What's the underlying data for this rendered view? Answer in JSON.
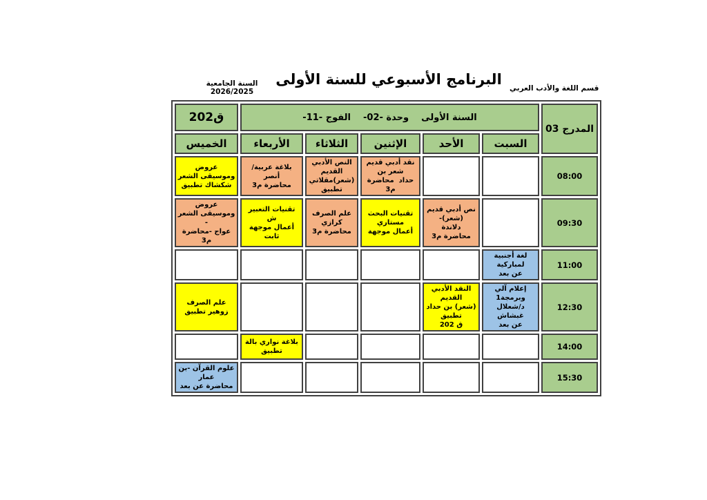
{
  "page": {
    "department": "قسم اللغة والأدب العربي",
    "title": "البرنامج الأسبوعي للسنة الأولى",
    "academic_year_label": "السنة الجامعية 2026/2025"
  },
  "table": {
    "hall": "المدرج 03",
    "group_header": "السنة الأولى    وحدة -02-    الفوج -11-",
    "room": "ق202",
    "days": [
      "السبت",
      "الأحد",
      "الإثنين",
      "الثلاثاء",
      "الأربعاء",
      "الخميس"
    ],
    "rows": [
      {
        "time": "08:00",
        "cells": [
          {
            "text": "",
            "color": "white"
          },
          {
            "text": "",
            "color": "white"
          },
          {
            "text": "نقد أدبي قديم شعر بن\nحداد  محاضرة م3",
            "color": "orange"
          },
          {
            "text": "النص الأدبي القديم\n(شعر)مقلاتي تطبيق",
            "color": "orange"
          },
          {
            "text": "بلاغة عربية/ أنصر\nمحاضرة م3",
            "color": "orange"
          },
          {
            "text": "عروض وموسيقى الشعر\nشكشاك تطبيق",
            "color": "yellow"
          }
        ]
      },
      {
        "time": "09:30",
        "cells": [
          {
            "text": "",
            "color": "white"
          },
          {
            "text": "نص أدبي قديم (شعر)-\nدلاندة\nمحاضرة م3",
            "color": "orange"
          },
          {
            "text": "تقنيات البحث مستاري\nأعمال موجهة",
            "color": "yellow"
          },
          {
            "text": "علم الصرف   كرازي\nمحاضرة م3",
            "color": "orange"
          },
          {
            "text": "تقنيات التعبير ش\nأعمال موجهة ثابت",
            "color": "yellow"
          },
          {
            "text": "عروض وموسيقى الشعر -\nعواج -محاضرة م3",
            "color": "orange"
          }
        ]
      },
      {
        "time": "11:00",
        "cells": [
          {
            "text": "لغة أجنبية لمباركية\nعن بعد",
            "color": "blue"
          },
          {
            "text": "",
            "color": "white"
          },
          {
            "text": "",
            "color": "white"
          },
          {
            "text": "",
            "color": "white"
          },
          {
            "text": "",
            "color": "white"
          },
          {
            "text": "",
            "color": "white"
          }
        ]
      },
      {
        "time": "12:30",
        "cells": [
          {
            "text": "إعلام آلي وبرمجة1\nد/شعلال غبشاش\nعن بعد",
            "color": "blue"
          },
          {
            "text": "النقد الأدبي القديم\n(شعر) بن حداد  تطبيق\nق 202",
            "color": "yellow"
          },
          {
            "text": "",
            "color": "white"
          },
          {
            "text": "",
            "color": "white"
          },
          {
            "text": "",
            "color": "white"
          },
          {
            "text": "علم الصرف زوهير تطبيق",
            "color": "yellow"
          }
        ]
      },
      {
        "time": "14:00",
        "cells": [
          {
            "text": "",
            "color": "white"
          },
          {
            "text": "",
            "color": "white"
          },
          {
            "text": "",
            "color": "white"
          },
          {
            "text": "",
            "color": "white"
          },
          {
            "text": "بلاغة نواري بالة\nتطبيق",
            "color": "yellow"
          },
          {
            "text": "",
            "color": "white"
          }
        ]
      },
      {
        "time": "15:30",
        "cells": [
          {
            "text": "",
            "color": "white"
          },
          {
            "text": "",
            "color": "white"
          },
          {
            "text": "",
            "color": "white"
          },
          {
            "text": "",
            "color": "white"
          },
          {
            "text": "",
            "color": "white"
          },
          {
            "text": "علوم القرآن -بن عمار\nمحاضرة عن بعد",
            "color": "blue"
          }
        ]
      }
    ]
  },
  "colors": {
    "header_green": "#a9cd8e",
    "lecture_orange": "#f4b183",
    "practical_yellow": "#ffff00",
    "remote_blue": "#9dc3e6",
    "border": "#404040"
  }
}
